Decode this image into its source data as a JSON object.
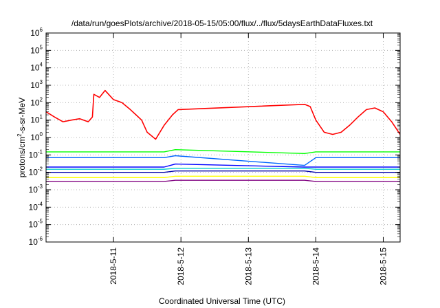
{
  "chart_data": {
    "type": "line",
    "title": "/data/run/goesPlots/archive/2018-05-15/05:00/flux/../flux/5daysEarthDataFluxes.txt",
    "xlabel": "Coordinated Universal Time (UTC)",
    "ylabel": {
      "base": "protons/cm",
      "sup": "2",
      "rest": "-s-sr-MeV"
    },
    "y_scale": "log",
    "ylim": [
      1e-06,
      1000000.0
    ],
    "y_tick_exponents": [
      -6,
      -5,
      -4,
      -3,
      -2,
      -1,
      0,
      1,
      2,
      3,
      4,
      5,
      6
    ],
    "y_tick_base": "10",
    "xlim": [
      "2018-05-10T00:00",
      "2018-05-15T06:00"
    ],
    "x_ticks": [
      {
        "value": "2018-05-11T00:00",
        "label": "2018-5-11"
      },
      {
        "value": "2018-05-12T00:00",
        "label": "2018-5-12"
      },
      {
        "value": "2018-05-13T00:00",
        "label": "2018-5-13"
      },
      {
        "value": "2018-05-14T00:00",
        "label": "2018-5-14"
      },
      {
        "value": "2018-05-15T00:00",
        "label": "2018-5-15"
      }
    ],
    "grid": true,
    "colors": {
      "red": "#ff0000",
      "green": "#00ff00",
      "blue": "#0000ff",
      "blue2": "#0066ff",
      "cyan": "#00cccc",
      "yellow": "#ffff00",
      "purple": "#800080"
    },
    "series": [
      {
        "color": "#ff0000",
        "x": [
          "2018-05-10T00:00",
          "2018-05-10T03:00",
          "2018-05-10T06:00",
          "2018-05-10T09:00",
          "2018-05-10T12:00",
          "2018-05-10T15:00",
          "2018-05-10T16:30",
          "2018-05-10T17:00",
          "2018-05-10T19:00",
          "2018-05-10T21:00",
          "2018-05-11T00:00",
          "2018-05-11T03:00",
          "2018-05-11T06:00",
          "2018-05-11T08:00",
          "2018-05-11T10:00",
          "2018-05-11T12:00",
          "2018-05-11T15:00",
          "2018-05-11T18:00",
          "2018-05-11T21:00",
          "2018-05-11T23:00",
          "2018-05-13T20:00",
          "2018-05-13T22:00",
          "2018-05-14T00:00",
          "2018-05-14T03:00",
          "2018-05-14T06:00",
          "2018-05-14T09:00",
          "2018-05-14T12:00",
          "2018-05-14T15:00",
          "2018-05-14T18:00",
          "2018-05-14T21:00",
          "2018-05-15T00:00",
          "2018-05-15T03:00",
          "2018-05-15T06:00"
        ],
        "y": [
          30,
          15,
          8,
          10,
          12,
          8,
          15,
          300,
          200,
          500,
          150,
          100,
          40,
          20,
          10,
          2,
          0.8,
          5,
          20,
          40,
          80,
          60,
          10,
          2,
          1.5,
          2,
          5,
          15,
          40,
          50,
          30,
          8,
          1.5
        ]
      },
      {
        "color": "#00ff00",
        "x": [
          "2018-05-10T00:00",
          "2018-05-10T12:00",
          "2018-05-11T00:00",
          "2018-05-11T12:00",
          "2018-05-11T18:00",
          "2018-05-11T22:00",
          "2018-05-13T20:00",
          "2018-05-14T00:00",
          "2018-05-14T12:00",
          "2018-05-15T00:00",
          "2018-05-15T06:00"
        ],
        "y": [
          0.15,
          0.15,
          0.15,
          0.15,
          0.15,
          0.2,
          0.12,
          0.15,
          0.15,
          0.15,
          0.15
        ]
      },
      {
        "color": "#0066ff",
        "x": [
          "2018-05-10T00:00",
          "2018-05-10T12:00",
          "2018-05-11T00:00",
          "2018-05-11T12:00",
          "2018-05-11T18:00",
          "2018-05-11T22:00",
          "2018-05-13T20:00",
          "2018-05-14T00:00",
          "2018-05-14T12:00",
          "2018-05-15T00:00",
          "2018-05-15T06:00"
        ],
        "y": [
          0.07,
          0.07,
          0.07,
          0.07,
          0.07,
          0.09,
          0.025,
          0.07,
          0.07,
          0.07,
          0.07
        ]
      },
      {
        "color": "#0000ff",
        "x": [
          "2018-05-10T00:00",
          "2018-05-10T12:00",
          "2018-05-11T00:00",
          "2018-05-11T12:00",
          "2018-05-11T18:00",
          "2018-05-11T22:00",
          "2018-05-13T20:00",
          "2018-05-14T00:00",
          "2018-05-14T12:00",
          "2018-05-15T00:00",
          "2018-05-15T06:00"
        ],
        "y": [
          0.02,
          0.02,
          0.02,
          0.02,
          0.02,
          0.03,
          0.02,
          0.02,
          0.02,
          0.02,
          0.02
        ]
      },
      {
        "color": "#00cccc",
        "x": [
          "2018-05-10T00:00",
          "2018-05-10T12:00",
          "2018-05-11T00:00",
          "2018-05-11T12:00",
          "2018-05-11T18:00",
          "2018-05-11T22:00",
          "2018-05-13T20:00",
          "2018-05-14T00:00",
          "2018-05-14T12:00",
          "2018-05-15T00:00",
          "2018-05-15T06:00"
        ],
        "y": [
          0.015,
          0.015,
          0.015,
          0.015,
          0.015,
          0.017,
          0.017,
          0.015,
          0.015,
          0.015,
          0.015
        ]
      },
      {
        "color": "#0000aa",
        "x": [
          "2018-05-10T00:00",
          "2018-05-10T12:00",
          "2018-05-11T00:00",
          "2018-05-11T12:00",
          "2018-05-11T18:00",
          "2018-05-11T22:00",
          "2018-05-13T20:00",
          "2018-05-14T00:00",
          "2018-05-14T12:00",
          "2018-05-15T00:00",
          "2018-05-15T06:00"
        ],
        "y": [
          0.01,
          0.01,
          0.01,
          0.01,
          0.01,
          0.012,
          0.012,
          0.01,
          0.01,
          0.01,
          0.01
        ]
      },
      {
        "color": "#ffff00",
        "x": [
          "2018-05-10T00:00",
          "2018-05-10T12:00",
          "2018-05-11T00:00",
          "2018-05-11T12:00",
          "2018-05-11T18:00",
          "2018-05-11T22:00",
          "2018-05-13T20:00",
          "2018-05-14T00:00",
          "2018-05-14T12:00",
          "2018-05-15T00:00",
          "2018-05-15T06:00"
        ],
        "y": [
          0.005,
          0.005,
          0.005,
          0.005,
          0.005,
          0.006,
          0.006,
          0.005,
          0.005,
          0.005,
          0.005
        ]
      },
      {
        "color": "#800080",
        "x": [
          "2018-05-10T00:00",
          "2018-05-10T12:00",
          "2018-05-11T00:00",
          "2018-05-11T12:00",
          "2018-05-11T18:00",
          "2018-05-11T22:00",
          "2018-05-13T20:00",
          "2018-05-14T00:00",
          "2018-05-14T12:00",
          "2018-05-15T00:00",
          "2018-05-15T06:00"
        ],
        "y": [
          0.003,
          0.003,
          0.003,
          0.003,
          0.003,
          0.0035,
          0.0035,
          0.003,
          0.003,
          0.003,
          0.003
        ]
      }
    ]
  }
}
